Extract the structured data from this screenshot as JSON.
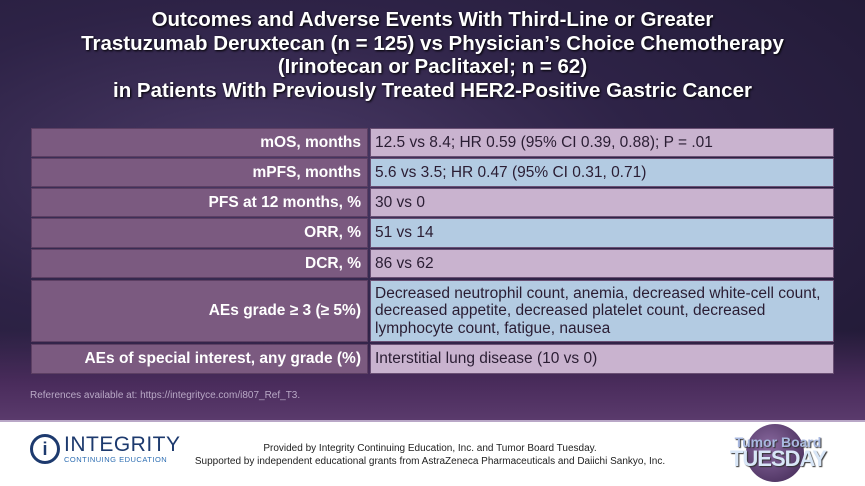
{
  "title": {
    "line1": "Outcomes and Adverse Events With Third-Line or Greater",
    "line2": "Trastuzumab Deruxtecan (n = 125) vs Physician’s Choice Chemotherapy",
    "line3": "(Irinotecan or Paclitaxel; n = 62)",
    "line4": "in Patients With Previously Treated HER2-Positive Gastric Cancer"
  },
  "table": [
    {
      "label": "mOS, months",
      "value": "12.5 vs 8.4; HR 0.59 (95% CI 0.39, 0.88); P = .01"
    },
    {
      "label": "mPFS, months",
      "value": "5.6 vs 3.5; HR 0.47 (95% CI 0.31, 0.71)"
    },
    {
      "label": "PFS at 12 months, %",
      "value": "30 vs 0"
    },
    {
      "label": "ORR, %",
      "value": "51 vs 14"
    },
    {
      "label": "DCR, %",
      "value": "86 vs 62"
    },
    {
      "label": "AEs grade ≥ 3 (≥ 5%)",
      "value": "Decreased neutrophil count, anemia, decreased white-cell count, decreased appetite, decreased platelet count, decreased lymphocyte count, fatigue, nausea"
    },
    {
      "label": "AEs of special interest, any grade (%)",
      "value": "Interstitial lung disease (10 vs 0)"
    }
  ],
  "references": "References available at: https://integrityce.com/i807_Ref_T3.",
  "footer": {
    "logo_name": "INTEGRITY",
    "logo_sub": "CONTINUING EDUCATION",
    "provided": "Provided by Integrity Continuing Education, Inc. and Tumor Board Tuesday.",
    "supported": "Supported by independent educational grants from AstraZeneca Pharmaceuticals and Daiichi Sankyo, Inc.",
    "tbt_line1": "Tumor Board",
    "tbt_line2": "TUESDAY"
  }
}
